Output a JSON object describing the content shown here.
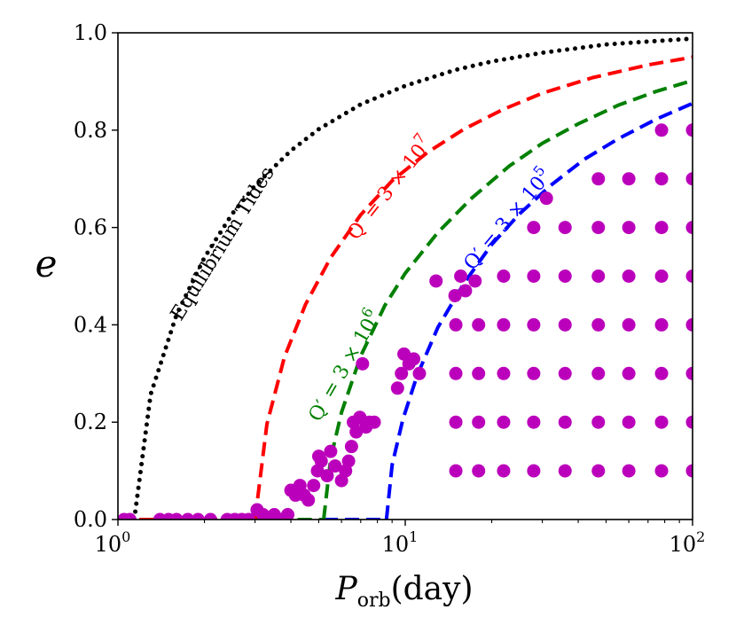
{
  "chart_data": {
    "type": "scatter",
    "xscale": "log",
    "xlim": [
      1,
      100
    ],
    "ylim": [
      0,
      1
    ],
    "x_ticks": [
      {
        "value": 1,
        "base": "10",
        "exp": "0"
      },
      {
        "value": 10,
        "base": "10",
        "exp": "1"
      },
      {
        "value": 100,
        "base": "10",
        "exp": "2"
      }
    ],
    "y_ticks": [
      {
        "value": 0.0,
        "label": "0.0"
      },
      {
        "value": 0.2,
        "label": "0.2"
      },
      {
        "value": 0.4,
        "label": "0.4"
      },
      {
        "value": 0.6,
        "label": "0.6"
      },
      {
        "value": 0.8,
        "label": "0.8"
      },
      {
        "value": 1.0,
        "label": "1.0"
      }
    ],
    "xlabel": {
      "main": "P",
      "sub": "orb",
      "unit": "(day)"
    },
    "ylabel": "e",
    "curves": [
      {
        "name": "equilibrium",
        "label": "Equilibrium Tides",
        "color": "#000000",
        "style": "dotted",
        "P0": 1.14,
        "x": [
          1.14,
          1.3,
          1.6,
          2,
          2.5,
          3,
          4,
          5,
          7,
          10,
          15,
          20,
          30,
          50,
          70,
          100
        ],
        "y": [
          0.0,
          0.257,
          0.421,
          0.538,
          0.628,
          0.686,
          0.758,
          0.802,
          0.853,
          0.891,
          0.924,
          0.941,
          0.959,
          0.976,
          0.982,
          0.988
        ]
      },
      {
        "name": "q3e7",
        "label_parts": [
          "Q′ = 3 × 10",
          "7"
        ],
        "color": "#ff0000",
        "style": "dashed",
        "P0": 3.0,
        "x": [
          3,
          3.3,
          3.8,
          4.5,
          5.5,
          7,
          9,
          12,
          16,
          22,
          30,
          45,
          70,
          100
        ],
        "y": [
          0.0,
          0.196,
          0.334,
          0.442,
          0.538,
          0.626,
          0.696,
          0.755,
          0.802,
          0.843,
          0.876,
          0.908,
          0.934,
          0.95
        ]
      },
      {
        "name": "q3e6",
        "label_parts": [
          "Q′ = 3 × 10",
          "6"
        ],
        "color": "#008000",
        "style": "dashed",
        "P0": 5.2,
        "x": [
          5.2,
          5.5,
          6,
          7,
          8.5,
          10,
          13,
          17,
          23,
          30,
          40,
          55,
          75,
          100
        ],
        "y": [
          0.0,
          0.125,
          0.22,
          0.336,
          0.44,
          0.506,
          0.59,
          0.66,
          0.726,
          0.773,
          0.813,
          0.851,
          0.88,
          0.902
        ]
      },
      {
        "name": "q3e5",
        "label_parts": [
          "Q′ = 3 × 10",
          "5"
        ],
        "color": "#0000ff",
        "style": "dashed",
        "P0": 8.6,
        "x": [
          8.6,
          9,
          9.8,
          11,
          13,
          16,
          20,
          25,
          32,
          42,
          55,
          75,
          100
        ],
        "y": [
          0.0,
          0.112,
          0.205,
          0.296,
          0.395,
          0.485,
          0.565,
          0.628,
          0.686,
          0.74,
          0.782,
          0.823,
          0.855
        ]
      }
    ],
    "baseline_segments": [
      {
        "color": "#ff0000",
        "x": [
          1,
          3
        ],
        "y": [
          0,
          0
        ]
      },
      {
        "color": "#008000",
        "x": [
          3,
          5.2
        ],
        "y": [
          0,
          0
        ]
      },
      {
        "color": "#0000ff",
        "x": [
          5.2,
          8.6
        ],
        "y": [
          0,
          0
        ]
      }
    ],
    "points_color": "#bb00bb",
    "grid_points": {
      "rows": [
        {
          "e": 0.1,
          "P": [
            15,
            18,
            22,
            28,
            36,
            47,
            60,
            78,
            100
          ]
        },
        {
          "e": 0.2,
          "P": [
            15,
            18,
            22,
            28,
            36,
            47,
            60,
            78,
            100
          ]
        },
        {
          "e": 0.3,
          "P": [
            15,
            18,
            22,
            28,
            36,
            47,
            60,
            78,
            100
          ]
        },
        {
          "e": 0.4,
          "P": [
            15,
            18,
            22,
            28,
            36,
            47,
            60,
            78,
            100
          ]
        },
        {
          "e": 0.5,
          "P": [
            22,
            28,
            36,
            47,
            60,
            78,
            100
          ]
        },
        {
          "e": 0.6,
          "P": [
            28,
            36,
            47,
            60,
            78,
            100
          ]
        },
        {
          "e": 0.7,
          "P": [
            47,
            60,
            78,
            100
          ]
        },
        {
          "e": 0.8,
          "P": [
            78,
            100
          ]
        }
      ]
    },
    "scatter_points": [
      [
        1.05,
        0.0
      ],
      [
        1.1,
        0.0
      ],
      [
        1.4,
        0.0
      ],
      [
        1.5,
        0.0
      ],
      [
        1.6,
        0.0
      ],
      [
        1.75,
        0.0
      ],
      [
        1.9,
        0.0
      ],
      [
        2.1,
        0.0
      ],
      [
        2.4,
        0.0
      ],
      [
        2.55,
        0.0
      ],
      [
        2.7,
        0.0
      ],
      [
        2.85,
        0.0
      ],
      [
        3.05,
        0.02
      ],
      [
        3.2,
        0.01
      ],
      [
        3.35,
        0.0
      ],
      [
        3.5,
        0.01
      ],
      [
        3.7,
        0.0
      ],
      [
        3.9,
        0.01
      ],
      [
        4.0,
        0.06
      ],
      [
        4.15,
        0.05
      ],
      [
        4.3,
        0.07
      ],
      [
        4.45,
        0.05
      ],
      [
        4.6,
        0.04
      ],
      [
        4.8,
        0.07
      ],
      [
        4.95,
        0.1
      ],
      [
        5.1,
        0.12
      ],
      [
        5.0,
        0.13
      ],
      [
        5.35,
        0.09
      ],
      [
        5.5,
        0.14
      ],
      [
        5.7,
        0.11
      ],
      [
        6.0,
        0.08
      ],
      [
        6.2,
        0.1
      ],
      [
        6.35,
        0.12
      ],
      [
        6.5,
        0.15
      ],
      [
        6.6,
        0.2
      ],
      [
        6.75,
        0.18
      ],
      [
        6.95,
        0.21
      ],
      [
        7.3,
        0.19
      ],
      [
        7.5,
        0.2
      ],
      [
        7.8,
        0.2
      ],
      [
        7.1,
        0.32
      ],
      [
        9.4,
        0.27
      ],
      [
        9.7,
        0.3
      ],
      [
        9.9,
        0.34
      ],
      [
        10.3,
        0.32
      ],
      [
        10.7,
        0.33
      ],
      [
        11.2,
        0.3
      ],
      [
        12.8,
        0.49
      ],
      [
        14.9,
        0.46
      ],
      [
        15.6,
        0.5
      ],
      [
        16.2,
        0.47
      ],
      [
        17.5,
        0.49
      ],
      [
        31.0,
        0.66
      ]
    ]
  }
}
